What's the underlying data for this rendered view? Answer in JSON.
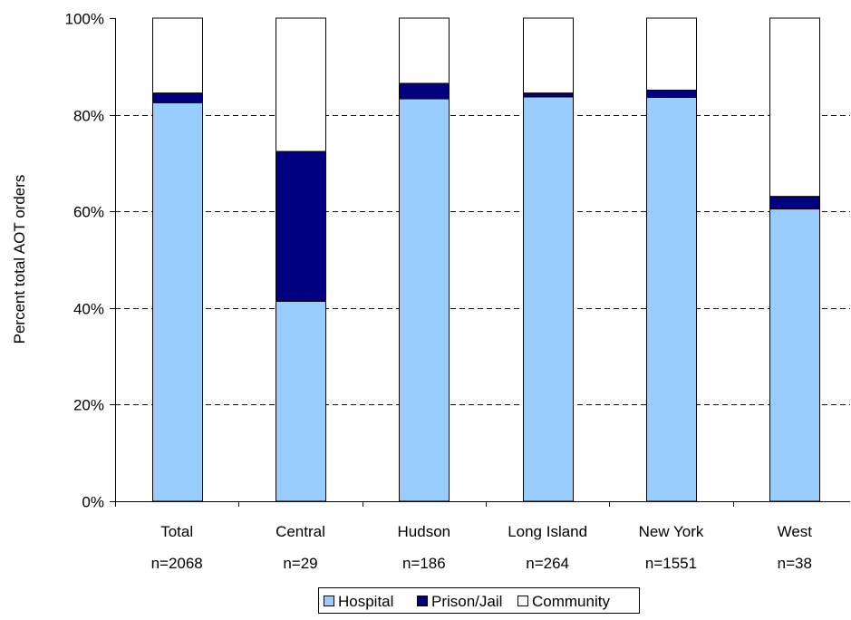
{
  "chart_data": {
    "type": "bar",
    "stacked": true,
    "categories": [
      "Total",
      "Central",
      "Hudson",
      "Long Island",
      "New York",
      "West"
    ],
    "category_sublabels": [
      "n=2068",
      "n=29",
      "n=186",
      "n=264",
      "n=1551",
      "n=38"
    ],
    "series": [
      {
        "name": "Hospital",
        "color": "#99ccff",
        "values": [
          82.5,
          41.4,
          83.3,
          83.7,
          83.6,
          60.5
        ]
      },
      {
        "name": "Prison/Jail",
        "color": "#000080",
        "values": [
          2.0,
          31.0,
          3.2,
          0.8,
          1.5,
          2.6
        ]
      },
      {
        "name": "Community",
        "color": "#ffffff",
        "values": [
          15.5,
          27.6,
          13.5,
          15.5,
          14.9,
          36.9
        ]
      }
    ],
    "title": "",
    "xlabel": "",
    "ylabel": "Percent total AOT orders",
    "ylim": [
      0,
      100
    ],
    "yticks": [
      "0%",
      "20%",
      "40%",
      "60%",
      "80%",
      "100%"
    ],
    "grid": "horizontal-dashed",
    "legend_placement": "bottom"
  }
}
